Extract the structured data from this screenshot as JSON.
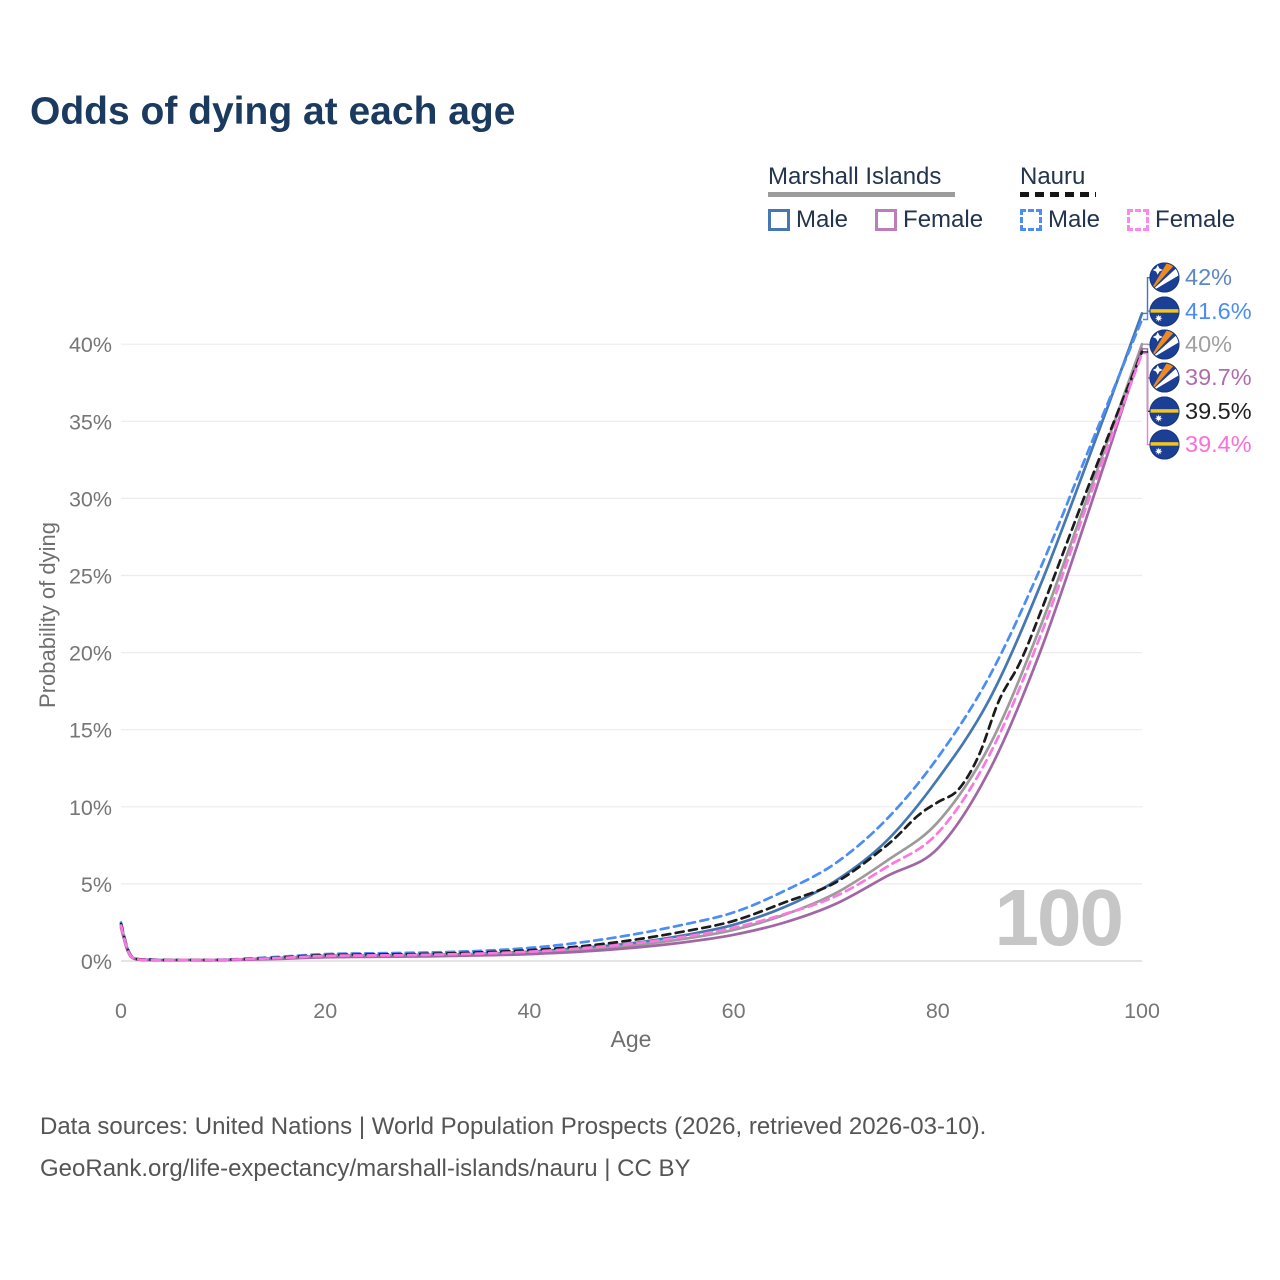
{
  "title": "Odds of dying at each age",
  "legend": {
    "groups": [
      {
        "title": "Marshall Islands",
        "line_style": "solid",
        "rule_color": "#9c9c9c",
        "items": [
          {
            "label": "Male",
            "color": "#4577b3"
          },
          {
            "label": "Female",
            "color": "#bd7cbb"
          }
        ]
      },
      {
        "title": "Nauru",
        "line_style": "dashed",
        "rule_color": "#151515",
        "items": [
          {
            "label": "Male",
            "color": "#4b8cf5"
          },
          {
            "label": "Female",
            "color": "#fb86ec"
          }
        ]
      }
    ]
  },
  "footer": {
    "line1": "Data sources: United Nations | World Population Prospects (2026, retrieved 2026-03-10).",
    "line2": "GeoRank.org/life-expectancy/marshall-islands/nauru | CC BY"
  },
  "chart_data": {
    "type": "line",
    "title": "Odds of dying at each age",
    "xlabel": "Age",
    "ylabel": "Probability of dying",
    "xlim": [
      0,
      100
    ],
    "ylim": [
      0,
      44
    ],
    "grid": "horizontal",
    "watermark": "100",
    "xticks": [
      {
        "value": 0,
        "label": "0"
      },
      {
        "value": 20,
        "label": "20"
      },
      {
        "value": 40,
        "label": "40"
      },
      {
        "value": 60,
        "label": "60"
      },
      {
        "value": 80,
        "label": "80"
      },
      {
        "value": 100,
        "label": "100"
      }
    ],
    "yticks": [
      {
        "value": 0,
        "label": "0%"
      },
      {
        "value": 5,
        "label": "5%"
      },
      {
        "value": 10,
        "label": "10%"
      },
      {
        "value": 15,
        "label": "15%"
      },
      {
        "value": 20,
        "label": "20%"
      },
      {
        "value": 25,
        "label": "25%"
      },
      {
        "value": 30,
        "label": "30%"
      },
      {
        "value": 35,
        "label": "35%"
      },
      {
        "value": 40,
        "label": "40%"
      }
    ],
    "series": [
      {
        "name": "Marshall Islands Male",
        "color": "#4577b3",
        "label_color": "#5d87c0",
        "dash": false,
        "flag": "mh",
        "end_label": "42%",
        "end_value": 42.0,
        "x": [
          0,
          1,
          3,
          6,
          10,
          15,
          20,
          25,
          30,
          35,
          40,
          45,
          50,
          55,
          60,
          65,
          70,
          75,
          80,
          85,
          90,
          95,
          100
        ],
        "y": [
          2.35,
          0.3,
          0.08,
          0.06,
          0.07,
          0.18,
          0.33,
          0.36,
          0.4,
          0.47,
          0.6,
          0.85,
          1.15,
          1.65,
          2.35,
          3.5,
          5.2,
          7.8,
          11.8,
          16.9,
          24.3,
          33.0,
          42.0
        ]
      },
      {
        "name": "Nauru Male",
        "color": "#4b8cf5",
        "label_color": "#4b8cf5",
        "dash": true,
        "flag": "nr",
        "end_label": "41.6%",
        "end_value": 41.6,
        "x": [
          0,
          1,
          3,
          6,
          10,
          15,
          20,
          25,
          30,
          35,
          40,
          45,
          50,
          55,
          60,
          65,
          70,
          75,
          80,
          85,
          90,
          95,
          100
        ],
        "y": [
          2.5,
          0.35,
          0.1,
          0.08,
          0.09,
          0.25,
          0.45,
          0.5,
          0.55,
          0.65,
          0.85,
          1.2,
          1.7,
          2.35,
          3.15,
          4.55,
          6.35,
          9.2,
          13.2,
          18.4,
          25.4,
          33.5,
          41.6
        ]
      },
      {
        "name": "Marshall Islands Both sexes",
        "color": "#9b9b9b",
        "label_color": "#a0a0a0",
        "dash": false,
        "flag": "mh",
        "end_label": "40%",
        "end_value": 40.0,
        "x": [
          0,
          1,
          3,
          6,
          10,
          15,
          20,
          25,
          30,
          35,
          40,
          45,
          50,
          55,
          60,
          65,
          70,
          75,
          80,
          85,
          90,
          95,
          100
        ],
        "y": [
          2.25,
          0.28,
          0.07,
          0.06,
          0.07,
          0.16,
          0.3,
          0.33,
          0.36,
          0.42,
          0.53,
          0.72,
          1.0,
          1.42,
          2.02,
          3.0,
          4.4,
          6.5,
          9.0,
          13.9,
          21.6,
          30.7,
          40.0
        ]
      },
      {
        "name": "Marshall Islands Female",
        "color": "#a067a4",
        "label_color": "#b06dab",
        "dash": false,
        "flag": "mh",
        "end_label": "39.7%",
        "end_value": 39.7,
        "x": [
          0,
          1,
          3,
          6,
          10,
          15,
          20,
          25,
          30,
          35,
          40,
          45,
          50,
          55,
          60,
          65,
          70,
          75,
          80,
          85,
          90,
          95,
          100
        ],
        "y": [
          2.15,
          0.25,
          0.06,
          0.05,
          0.06,
          0.13,
          0.24,
          0.27,
          0.3,
          0.36,
          0.45,
          0.6,
          0.85,
          1.2,
          1.7,
          2.5,
          3.7,
          5.5,
          7.3,
          12.3,
          20.0,
          29.6,
          39.7
        ]
      },
      {
        "name": "Nauru Both sexes",
        "color": "#1c1c1c",
        "label_color": "#222222",
        "dash": true,
        "flag": "nr",
        "end_label": "39.5%",
        "end_value": 39.5,
        "x": [
          0,
          1,
          3,
          6,
          10,
          15,
          20,
          25,
          30,
          35,
          40,
          45,
          50,
          55,
          60,
          65,
          70,
          75,
          78,
          80,
          82,
          84,
          86,
          88,
          90,
          95,
          100
        ],
        "y": [
          2.4,
          0.32,
          0.09,
          0.07,
          0.08,
          0.2,
          0.38,
          0.42,
          0.46,
          0.55,
          0.7,
          0.95,
          1.35,
          1.9,
          2.6,
          3.8,
          5.1,
          7.5,
          9.4,
          10.3,
          11.1,
          13.3,
          16.9,
          19.3,
          22.5,
          31.2,
          39.5
        ]
      },
      {
        "name": "Nauru Female",
        "color": "#fa78e0",
        "label_color": "#fc6ed8",
        "dash": true,
        "flag": "nr",
        "end_label": "39.4%",
        "end_value": 39.4,
        "x": [
          0,
          1,
          3,
          6,
          10,
          15,
          20,
          25,
          30,
          35,
          40,
          45,
          50,
          55,
          60,
          65,
          70,
          75,
          80,
          85,
          90,
          95,
          100
        ],
        "y": [
          2.3,
          0.3,
          0.08,
          0.07,
          0.08,
          0.18,
          0.33,
          0.36,
          0.4,
          0.48,
          0.6,
          0.82,
          1.12,
          1.55,
          2.15,
          3.05,
          4.2,
          6.1,
          8.3,
          13.3,
          21.0,
          30.3,
          39.4
        ]
      }
    ]
  }
}
